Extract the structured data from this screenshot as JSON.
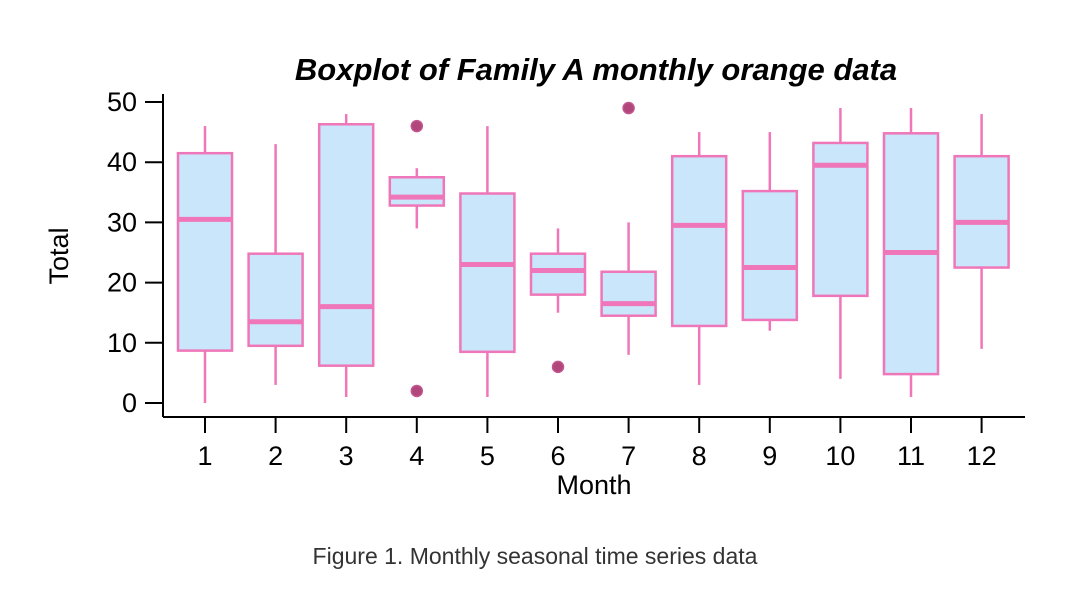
{
  "caption": "Figure 1. Monthly seasonal time series data",
  "colors": {
    "box_fill": "#c9e6fa",
    "box_stroke": "#ef77b9",
    "outlier": "#b0467a",
    "axis": "#000000"
  },
  "chart_data": {
    "type": "boxplot",
    "title": "Boxplot of Family A monthly orange data",
    "xlabel": "Month",
    "ylabel": "Total",
    "ylim": [
      0,
      50
    ],
    "yticks": [
      0,
      10,
      20,
      30,
      40,
      50
    ],
    "grid": false,
    "categories": [
      "1",
      "2",
      "3",
      "4",
      "5",
      "6",
      "7",
      "8",
      "9",
      "10",
      "11",
      "12"
    ],
    "boxes": [
      {
        "category": "1",
        "min": 0,
        "q1": 8.7,
        "median": 30.5,
        "q3": 41.5,
        "max": 46,
        "outliers": []
      },
      {
        "category": "2",
        "min": 3,
        "q1": 9.5,
        "median": 13.5,
        "q3": 24.8,
        "max": 43,
        "outliers": []
      },
      {
        "category": "3",
        "min": 1,
        "q1": 6.2,
        "median": 16,
        "q3": 46.3,
        "max": 48,
        "outliers": []
      },
      {
        "category": "4",
        "min": 29,
        "q1": 32.8,
        "median": 34.2,
        "q3": 37.5,
        "max": 39,
        "outliers": [
          46,
          2
        ]
      },
      {
        "category": "5",
        "min": 1,
        "q1": 8.5,
        "median": 23,
        "q3": 34.8,
        "max": 46,
        "outliers": []
      },
      {
        "category": "6",
        "min": 15,
        "q1": 18,
        "median": 22,
        "q3": 24.8,
        "max": 29,
        "outliers": [
          6
        ]
      },
      {
        "category": "7",
        "min": 8,
        "q1": 14.5,
        "median": 16.5,
        "q3": 21.8,
        "max": 30,
        "outliers": [
          49
        ]
      },
      {
        "category": "8",
        "min": 3,
        "q1": 12.8,
        "median": 29.5,
        "q3": 41,
        "max": 45,
        "outliers": []
      },
      {
        "category": "9",
        "min": 12,
        "q1": 13.8,
        "median": 22.5,
        "q3": 35.2,
        "max": 45,
        "outliers": []
      },
      {
        "category": "10",
        "min": 4,
        "q1": 17.8,
        "median": 39.5,
        "q3": 43.2,
        "max": 49,
        "outliers": []
      },
      {
        "category": "11",
        "min": 1,
        "q1": 4.8,
        "median": 25,
        "q3": 44.8,
        "max": 49,
        "outliers": []
      },
      {
        "category": "12",
        "min": 9,
        "q1": 22.5,
        "median": 30,
        "q3": 41,
        "max": 48,
        "outliers": []
      }
    ]
  }
}
